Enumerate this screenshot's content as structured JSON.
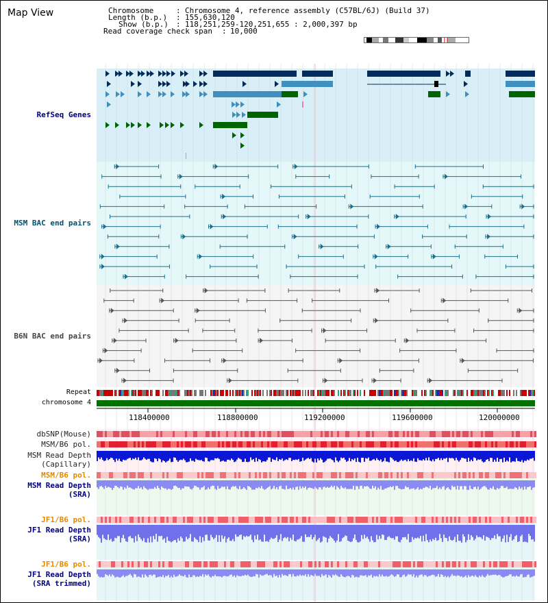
{
  "title": "Map View",
  "info": {
    "chromosome_label": "Chromosome",
    "chromosome_value": "Chromosome 4, reference assembly (C57BL/6J) (Build 37)",
    "length_label": "Length (b.p.)",
    "length_value": "155,630,120",
    "show_label": "Show (b.p.)",
    "show_value": "118,251,259-120,251,655 : 2,000,397 bp",
    "span_label": "Read coverage check span",
    "span_value": "10,000"
  },
  "tracks": {
    "refseq": "RefSeq Genes",
    "msm_bac": "MSM BAC end pairs",
    "b6n_bac": "B6N BAC end pairs",
    "repeat": "Repeat",
    "chromosome": "chromosome 4",
    "dbsnp": "dbSNP(Mouse)",
    "msm_b6_pol": "MSM/B6 pol.",
    "msm_depth_cap_1": "MSM Read Depth",
    "msm_depth_cap_2": "(Capillary)",
    "msm_b6_pol_sra": "MSM/B6 pol.",
    "msm_depth_sra_1": "MSM Read Depth",
    "msm_depth_sra_2": "(SRA)",
    "jf1_b6_pol": "JF1/B6 pol.",
    "jf1_depth_1": "JF1 Read Depth",
    "jf1_depth_2": "(SRA)",
    "jf1_b6_pol_trim": "JF1/B6 pol.",
    "jf1_trim_1": "JF1 Read Depth",
    "jf1_trim_2": "(SRA trimmed)"
  },
  "axis": {
    "ticks": [
      "118400000",
      "118800000",
      "119200000",
      "119600000",
      "120000000"
    ]
  },
  "colors": {
    "refseq_bg": "#d9eff8",
    "msm_bg": "#e4f7f9",
    "b6n_bg": "#f5f5f5",
    "gene_dark": "#002b5c",
    "gene_mid": "#3f8fbf",
    "gene_green": "#006400",
    "chromosome": "#007000",
    "depth_blue": "#0a18d6",
    "depth_light": "#8a8af2",
    "label_blue": "#000080",
    "label_orange": "#e08a00"
  }
}
